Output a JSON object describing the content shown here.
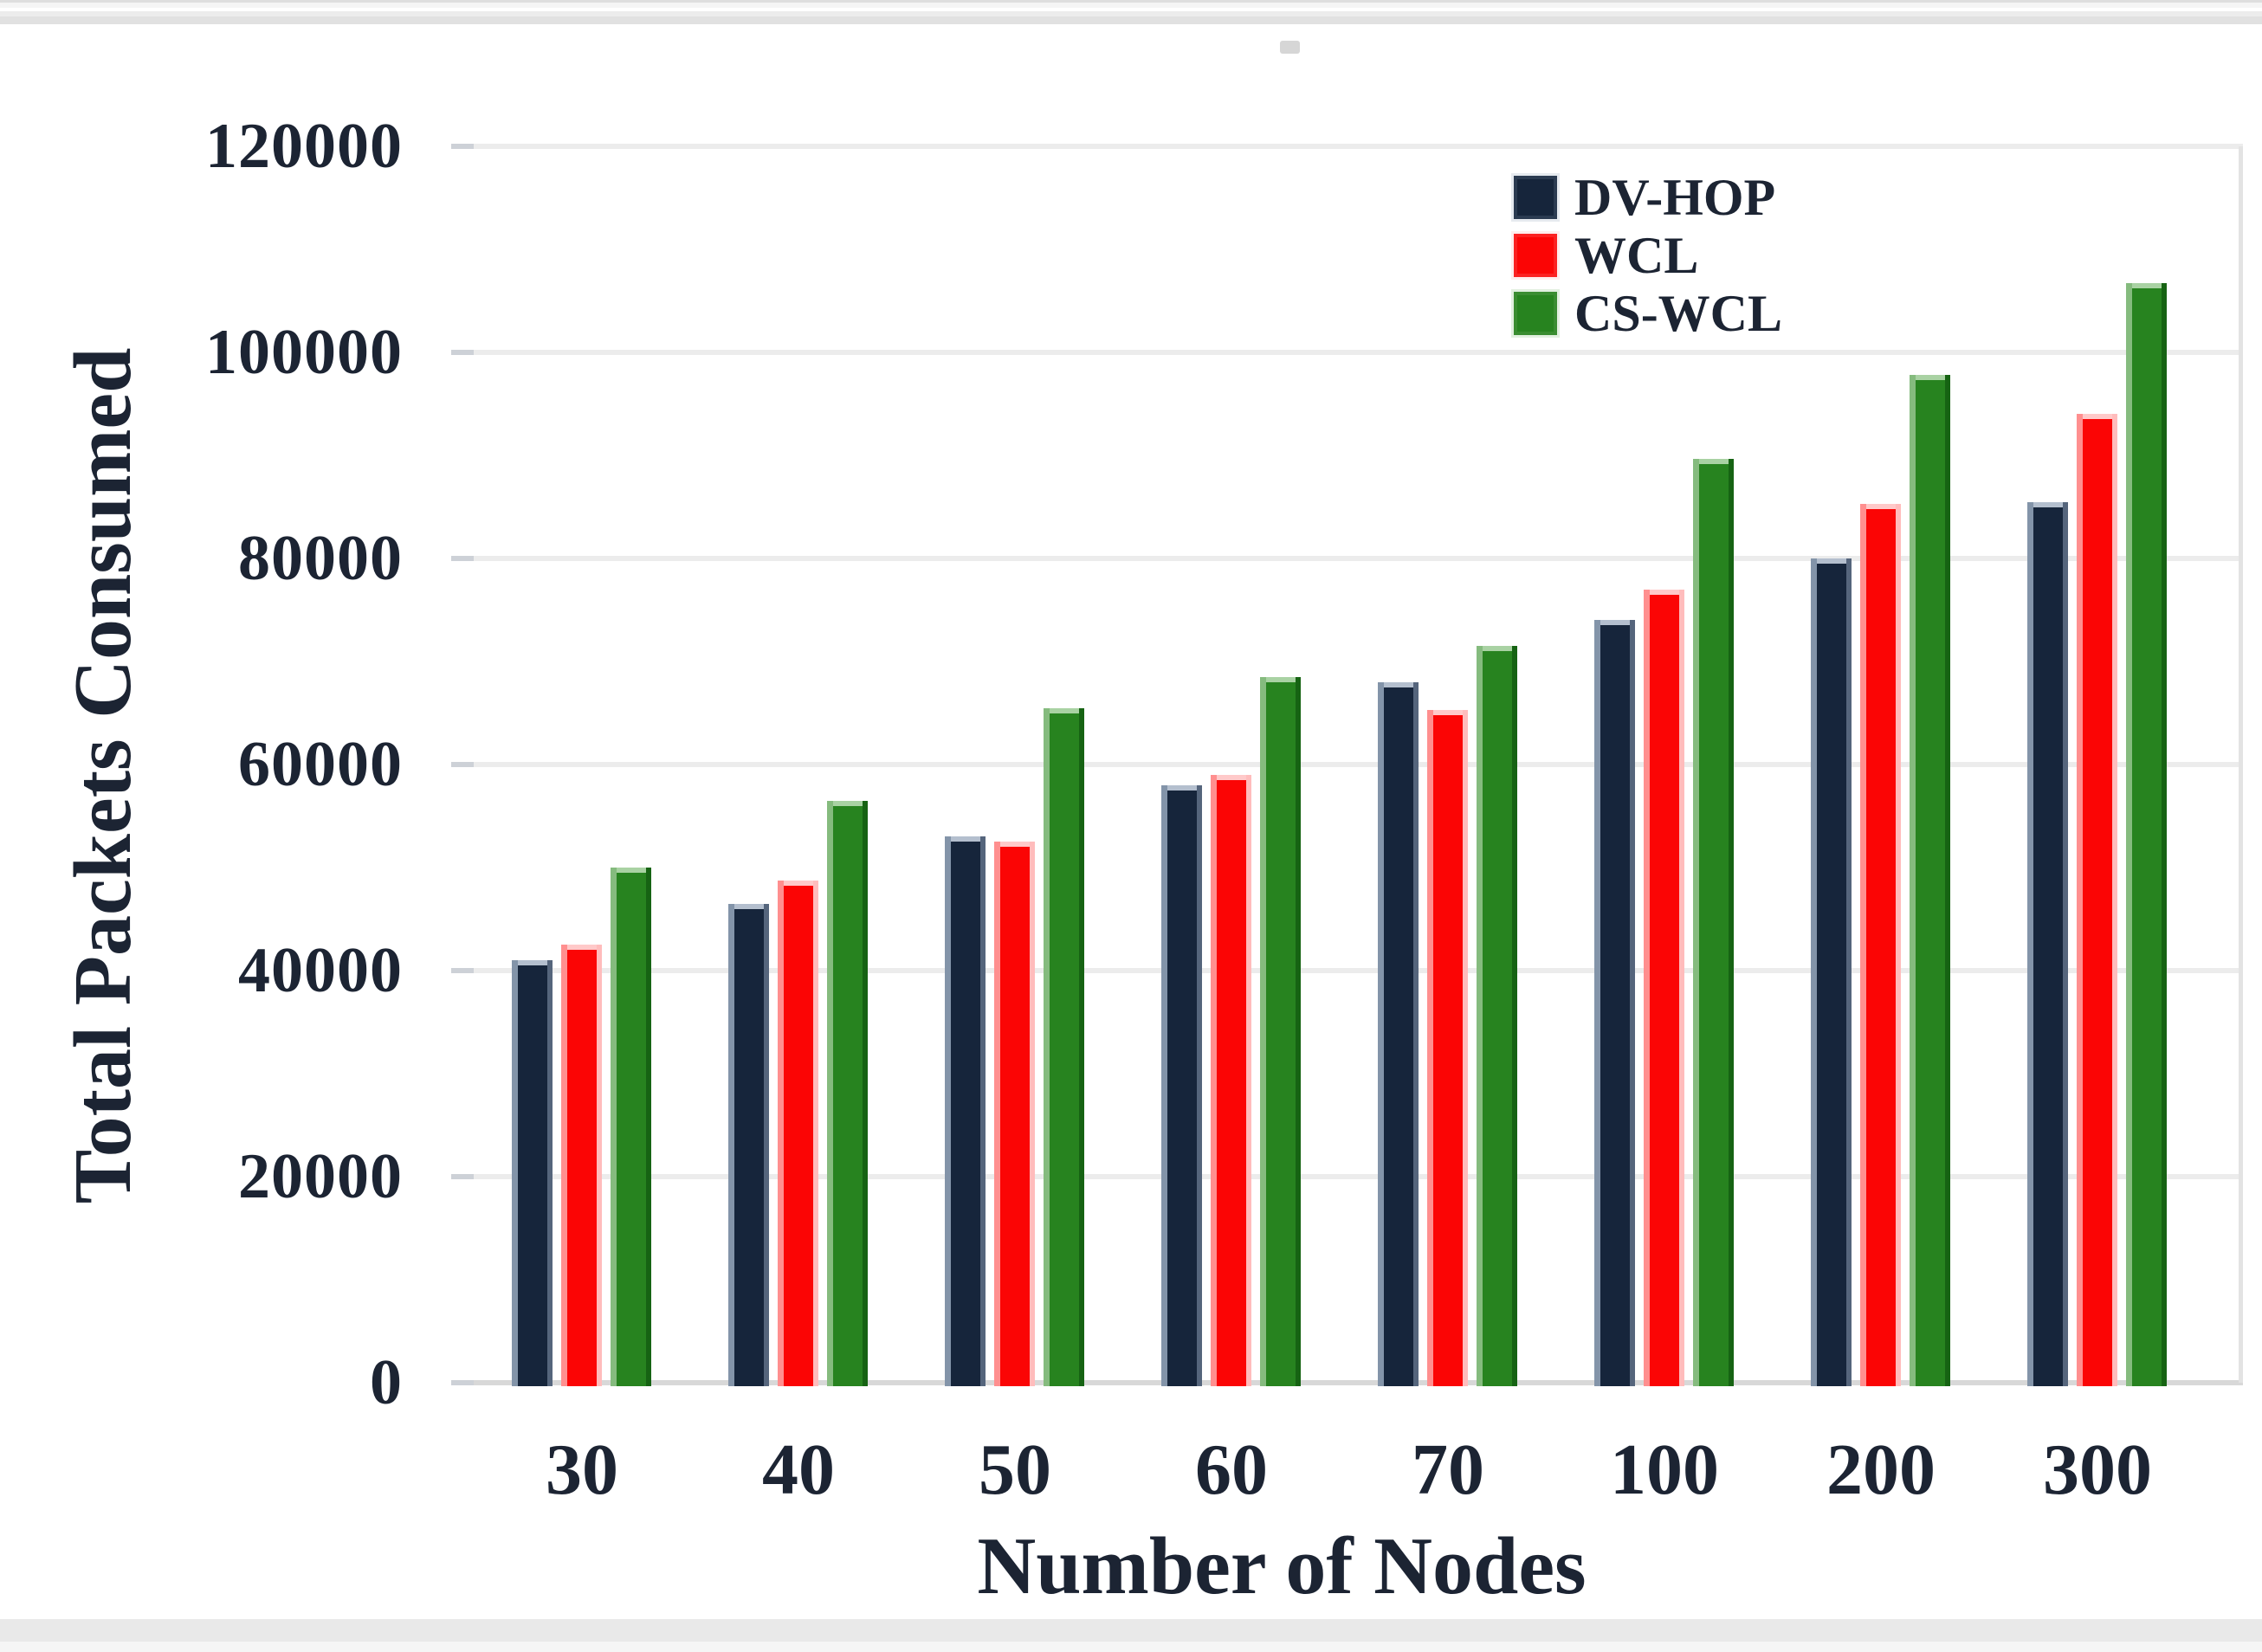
{
  "chart_data": {
    "type": "bar",
    "title": "",
    "xlabel": "Number of Nodes",
    "ylabel": "Total Packets Consumed",
    "categories": [
      "30",
      "40",
      "50",
      "60",
      "70",
      "100",
      "200",
      "300"
    ],
    "series": [
      {
        "name": "DV-HOP",
        "color": "#16253b",
        "edge_left": "#8394a9",
        "edge_right": "#55657c",
        "edge_top": "#b4bfce",
        "values": [
          41000,
          46500,
          53000,
          58000,
          68000,
          74000,
          80000,
          85500
        ]
      },
      {
        "name": "WCL",
        "color": "#fb0505",
        "edge_left": "#ff8f8f",
        "edge_right": "#ffbcbc",
        "edge_top": "#ffc9c9",
        "values": [
          42500,
          48700,
          52500,
          59000,
          65300,
          77000,
          85300,
          94000
        ]
      },
      {
        "name": "CS-WCL",
        "color": "#27831f",
        "edge_left": "#85bb7e",
        "edge_right": "#166313",
        "edge_top": "#a9d2a3",
        "values": [
          50000,
          56500,
          65500,
          68500,
          71500,
          89700,
          97800,
          106700
        ]
      }
    ],
    "y_ticks": [
      0,
      20000,
      40000,
      60000,
      80000,
      100000,
      120000
    ],
    "ylim": [
      0,
      120000
    ],
    "grid": true,
    "legend_position": "top-right"
  },
  "colors": {
    "text": "#1c2433",
    "grid": "#ececec",
    "baseline": "#d8d8d8",
    "tick": "#cdd1d7",
    "plot_right_border": "#e3e3e3"
  }
}
